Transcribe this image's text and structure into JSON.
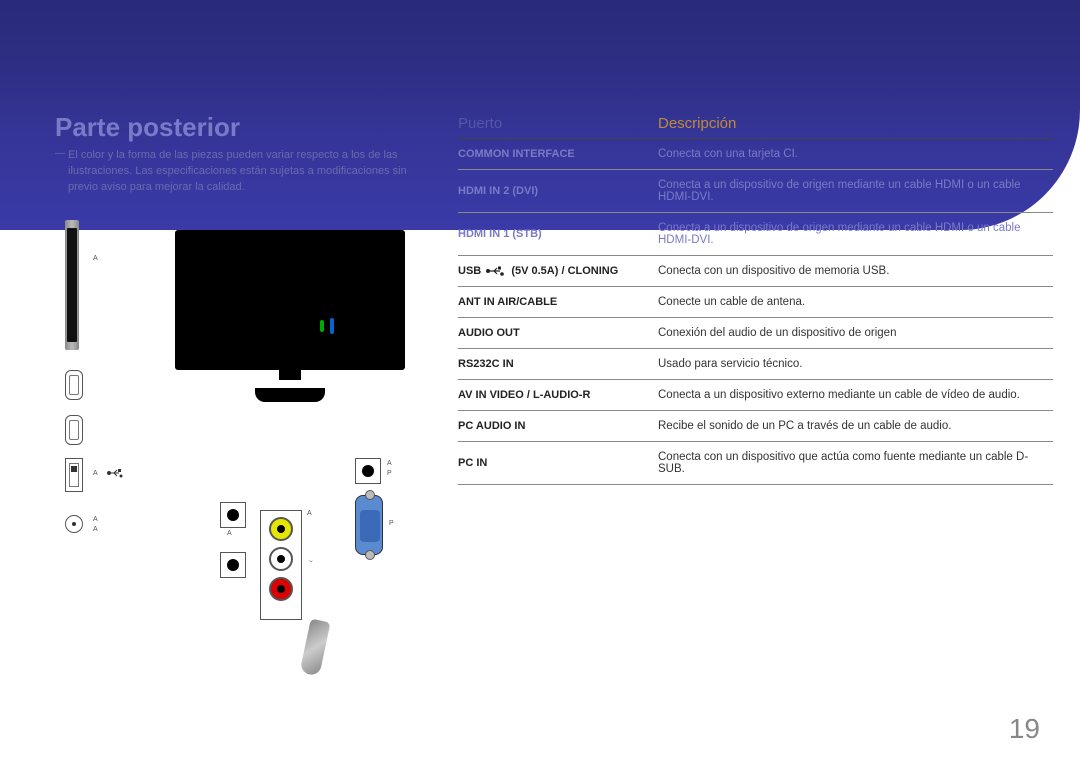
{
  "title": "Parte posterior",
  "note_prefix": "―",
  "note": "El color y la forma de las piezas pueden variar respecto a los de las ilustraciones. Las especificaciones están sujetas a modificaciones sin previo aviso para mejorar la calidad.",
  "tableHeaders": {
    "port": "Puerto",
    "desc": "Descripción"
  },
  "rows": [
    {
      "port": "COMMON INTERFACE",
      "desc": "Conecta con una tarjeta CI.",
      "inband": true
    },
    {
      "port": "HDMI IN 2 (DVI)",
      "desc": "Conecta a un dispositivo de origen mediante un cable HDMI o un cable HDMI-DVI.",
      "inband": true
    },
    {
      "port": "HDMI IN 1 (STB)",
      "desc": "Conecta a un dispositivo de origen mediante un cable HDMI o un cable HDMI-DVI.",
      "inband": true
    },
    {
      "port_pre": "USB ",
      "port_post": " (5V 0.5A) / CLONING",
      "usb_icon": true,
      "desc": "Conecta con un dispositivo de memoria USB."
    },
    {
      "port": "ANT IN AIR/CABLE",
      "desc": "Conecte un cable de antena."
    },
    {
      "port": "AUDIO OUT",
      "desc": "Conexión del audio de un dispositivo de origen"
    },
    {
      "port": "RS232C IN",
      "desc": "Usado para servicio técnico."
    },
    {
      "port": "AV IN VIDEO / L-AUDIO-R",
      "desc": "Conecta a un dispositivo externo mediante un cable de vídeo de audio."
    },
    {
      "port": "PC AUDIO IN",
      "desc": "Recibe el sonido de un PC a través de un cable de audio."
    },
    {
      "port": "PC IN",
      "desc": "Conecta con un dispositivo que actúa como fuente mediante un cable D-SUB."
    }
  ],
  "pageNumber": "19",
  "labels": {
    "a": "A",
    "p": "P"
  }
}
